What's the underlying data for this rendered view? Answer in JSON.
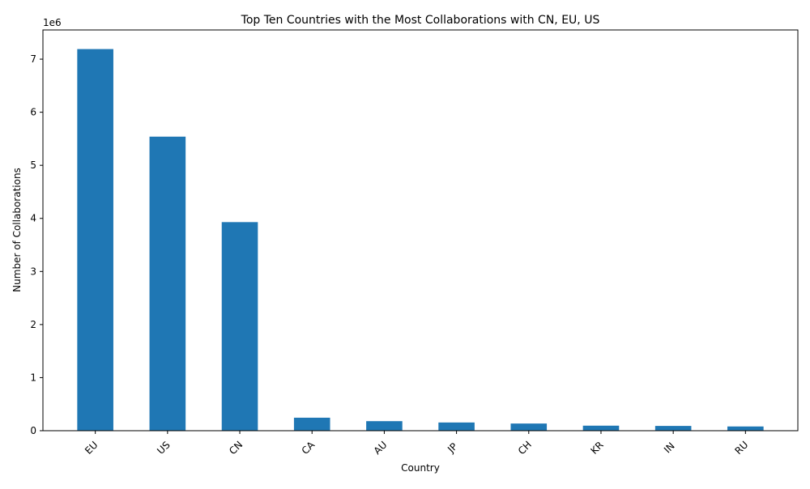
{
  "chart_data": {
    "type": "bar",
    "title": "Top Ten Countries with the Most Collaborations with CN, EU, US",
    "xlabel": "Country",
    "ylabel": "Number of Collaborations",
    "y_offset_label": "1e6",
    "categories": [
      "EU",
      "US",
      "CN",
      "CA",
      "AU",
      "JP",
      "CH",
      "KR",
      "IN",
      "RU"
    ],
    "values": [
      7190000,
      5540000,
      3930000,
      245000,
      180000,
      155000,
      135000,
      95000,
      90000,
      80000
    ],
    "yticks": [
      0,
      1000000,
      2000000,
      3000000,
      4000000,
      5000000,
      6000000,
      7000000
    ],
    "ytick_labels": [
      "0",
      "1",
      "2",
      "3",
      "4",
      "5",
      "6",
      "7"
    ],
    "ylim": [
      0,
      7550000
    ],
    "bar_color": "#1f77b4",
    "grid": false,
    "legend": "none"
  }
}
